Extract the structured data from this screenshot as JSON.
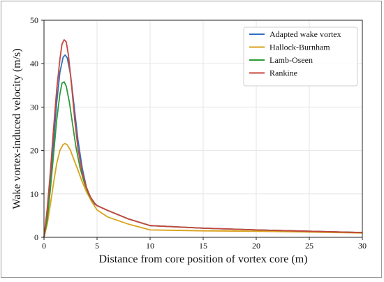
{
  "chart_data": {
    "type": "line",
    "title": "",
    "xlabel": "Distance from core position of vortex core (m)",
    "ylabel": "Wake vortex-induced velocity (m/s)",
    "xlim": [
      0,
      30
    ],
    "ylim": [
      0,
      50
    ],
    "xticks": [
      "0",
      "5",
      "10",
      "15",
      "20",
      "25",
      "30"
    ],
    "yticks": [
      "0",
      "10",
      "20",
      "30",
      "40",
      "50"
    ],
    "grid": true,
    "legend_position": "top-right",
    "series": [
      {
        "name": "Adapted wake vortex",
        "color": "#2f6fc0",
        "x": [
          0,
          0.3,
          0.6,
          0.9,
          1.2,
          1.5,
          1.8,
          2.0,
          2.2,
          2.5,
          2.8,
          3.2,
          3.6,
          4.0,
          4.4,
          4.8,
          5.0,
          6,
          8,
          10,
          15,
          20,
          25,
          30
        ],
        "y": [
          0,
          5,
          13,
          22,
          31,
          38,
          41.5,
          42,
          41.3,
          37.5,
          31,
          22.5,
          16,
          11.5,
          9,
          7.6,
          7.3,
          6.2,
          4.2,
          2.7,
          2.1,
          1.7,
          1.4,
          1.1
        ]
      },
      {
        "name": "Hallock-Burnham",
        "color": "#d9a21b",
        "x": [
          0,
          0.3,
          0.6,
          0.9,
          1.2,
          1.5,
          1.8,
          2.0,
          2.2,
          2.5,
          2.8,
          3.2,
          3.6,
          4.0,
          4.5,
          5.0,
          6,
          8,
          10,
          15,
          20,
          25,
          30
        ],
        "y": [
          0,
          3,
          7.5,
          12.5,
          17,
          20,
          21.4,
          21.6,
          21.3,
          20,
          18,
          15.5,
          12.8,
          10.5,
          8.2,
          6.3,
          4.7,
          3,
          1.7,
          1.5,
          1.4,
          1.2,
          1.0
        ]
      },
      {
        "name": "Lamb-Oseen",
        "color": "#2f9b35",
        "x": [
          0,
          0.3,
          0.6,
          0.9,
          1.2,
          1.5,
          1.7,
          1.9,
          2.1,
          2.4,
          2.7,
          3.0,
          3.4,
          3.8,
          4.2,
          4.6,
          5.0,
          6,
          8,
          10,
          15,
          20,
          25,
          30
        ],
        "y": [
          0,
          4,
          11,
          19,
          27,
          33,
          35.5,
          35.8,
          34.8,
          31,
          26,
          21,
          16,
          12.5,
          10,
          8.3,
          7.3,
          6.2,
          4.2,
          2.7,
          2.1,
          1.7,
          1.4,
          1.1
        ]
      },
      {
        "name": "Rankine",
        "color": "#c9463d",
        "x": [
          0,
          0.3,
          0.6,
          0.9,
          1.2,
          1.5,
          1.7,
          1.9,
          2.1,
          2.3,
          2.6,
          2.9,
          3.2,
          3.6,
          4.0,
          4.4,
          4.8,
          5.0,
          6,
          8,
          10,
          15,
          20,
          25,
          30
        ],
        "y": [
          0,
          6.5,
          15,
          25,
          34,
          41,
          44.5,
          45.5,
          45,
          42,
          35,
          27,
          20.5,
          15,
          11.5,
          9.2,
          7.8,
          7.3,
          6.2,
          4.2,
          2.7,
          2.1,
          1.7,
          1.4,
          1.1
        ]
      }
    ]
  }
}
